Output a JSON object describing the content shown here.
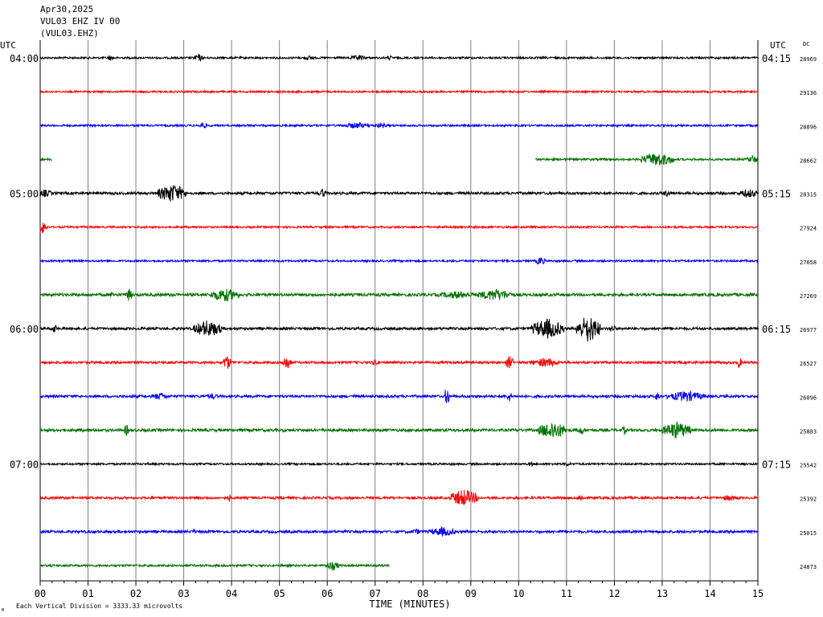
{
  "header": {
    "date": "Apr30,2025",
    "station_line": "VUL03 EHZ IV 00",
    "station_code": "(VUL03.EHZ)"
  },
  "chart_data": {
    "type": "line",
    "left_axis_title": "UTC",
    "right_axis_title": "UTC",
    "dc_title": "DC",
    "xlabel": "TIME (MINUTES)",
    "xlim": [
      0,
      15
    ],
    "x_ticks": [
      "00",
      "01",
      "02",
      "03",
      "04",
      "05",
      "06",
      "07",
      "08",
      "09",
      "10",
      "11",
      "12",
      "13",
      "14",
      "15"
    ],
    "footnote": "Each Vertical Division = 3333.33 microvolts",
    "corner_mark": "M",
    "left_hour_labels": [
      {
        "row": 0,
        "label": "04:00"
      },
      {
        "row": 4,
        "label": "05:00"
      },
      {
        "row": 8,
        "label": "06:00"
      },
      {
        "row": 12,
        "label": "07:00"
      }
    ],
    "right_hour_labels": [
      {
        "row": 0,
        "label": "04:15"
      },
      {
        "row": 4,
        "label": "05:15"
      },
      {
        "row": 8,
        "label": "06:15"
      },
      {
        "row": 12,
        "label": "07:15"
      }
    ],
    "trace_colors": [
      "#000000",
      "#ff0000",
      "#0000ff",
      "#007000"
    ],
    "traces": [
      {
        "row": 0,
        "dc": "28969",
        "segments": [
          [
            0,
            15
          ]
        ],
        "amp": 1.2,
        "events": [
          {
            "t": 1.45,
            "a": 4,
            "d": 0.05
          },
          {
            "t": 3.3,
            "a": 5,
            "d": 0.1
          },
          {
            "t": 5.6,
            "a": 3,
            "d": 0.15
          },
          {
            "t": 6.65,
            "a": 3.5,
            "d": 0.2
          },
          {
            "t": 7.3,
            "a": 4,
            "d": 0.05
          }
        ]
      },
      {
        "row": 1,
        "dc": "29136",
        "segments": [
          [
            0,
            15
          ]
        ],
        "amp": 1.2,
        "events": []
      },
      {
        "row": 2,
        "dc": "28896",
        "segments": [
          [
            0,
            15
          ]
        ],
        "amp": 1.2,
        "events": [
          {
            "t": 3.4,
            "a": 5,
            "d": 0.08
          },
          {
            "t": 6.6,
            "a": 4,
            "d": 0.3
          },
          {
            "t": 7.1,
            "a": 3,
            "d": 0.2
          },
          {
            "t": 12.05,
            "a": 3,
            "d": 0.05
          }
        ]
      },
      {
        "row": 3,
        "dc": "28662",
        "segments": [
          [
            0,
            0.25
          ],
          [
            10.35,
            15
          ]
        ],
        "amp": 1.3,
        "events": [
          {
            "t": 12.9,
            "a": 9,
            "d": 0.35
          },
          {
            "t": 14.9,
            "a": 5,
            "d": 0.15
          }
        ]
      },
      {
        "row": 4,
        "dc": "28315",
        "segments": [
          [
            0,
            15
          ]
        ],
        "amp": 1.6,
        "events": [
          {
            "t": 0.1,
            "a": 5,
            "d": 0.15
          },
          {
            "t": 2.75,
            "a": 12,
            "d": 0.3
          },
          {
            "t": 5.9,
            "a": 6,
            "d": 0.08
          },
          {
            "t": 13.1,
            "a": 5,
            "d": 0.08
          },
          {
            "t": 14.8,
            "a": 6,
            "d": 0.2
          }
        ]
      },
      {
        "row": 5,
        "dc": "27924",
        "segments": [
          [
            0,
            15
          ]
        ],
        "amp": 1.2,
        "events": [
          {
            "t": 0.05,
            "a": 9,
            "d": 0.08
          },
          {
            "t": 9.1,
            "a": 3,
            "d": 0.05
          }
        ]
      },
      {
        "row": 6,
        "dc": "27658",
        "segments": [
          [
            0,
            15
          ]
        ],
        "amp": 1.2,
        "events": [
          {
            "t": 10.45,
            "a": 6,
            "d": 0.1
          }
        ]
      },
      {
        "row": 7,
        "dc": "27269",
        "segments": [
          [
            0,
            15
          ]
        ],
        "amp": 1.8,
        "events": [
          {
            "t": 1.5,
            "a": 5,
            "d": 0.05
          },
          {
            "t": 1.85,
            "a": 8,
            "d": 0.08
          },
          {
            "t": 3.85,
            "a": 9,
            "d": 0.3
          },
          {
            "t": 8.7,
            "a": 5,
            "d": 0.4
          },
          {
            "t": 9.5,
            "a": 8,
            "d": 0.35
          }
        ]
      },
      {
        "row": 8,
        "dc": "26977",
        "segments": [
          [
            0,
            15
          ]
        ],
        "amp": 1.6,
        "events": [
          {
            "t": 0.3,
            "a": 6,
            "d": 0.05
          },
          {
            "t": 3.5,
            "a": 11,
            "d": 0.3
          },
          {
            "t": 10.6,
            "a": 13,
            "d": 0.35
          },
          {
            "t": 11.45,
            "a": 18,
            "d": 0.25
          },
          {
            "t": 11.95,
            "a": 5,
            "d": 0.08
          }
        ]
      },
      {
        "row": 9,
        "dc": "26527",
        "segments": [
          [
            0,
            15
          ]
        ],
        "amp": 1.5,
        "events": [
          {
            "t": 3.9,
            "a": 10,
            "d": 0.08
          },
          {
            "t": 5.15,
            "a": 10,
            "d": 0.1
          },
          {
            "t": 7.0,
            "a": 4,
            "d": 0.1
          },
          {
            "t": 9.8,
            "a": 9,
            "d": 0.08
          },
          {
            "t": 10.55,
            "a": 6,
            "d": 0.3
          },
          {
            "t": 14.6,
            "a": 8,
            "d": 0.05
          }
        ]
      },
      {
        "row": 10,
        "dc": "26096",
        "segments": [
          [
            0,
            15
          ]
        ],
        "amp": 1.6,
        "events": [
          {
            "t": 2.5,
            "a": 5,
            "d": 0.15
          },
          {
            "t": 3.6,
            "a": 4,
            "d": 0.12
          },
          {
            "t": 8.5,
            "a": 14,
            "d": 0.05
          },
          {
            "t": 9.8,
            "a": 8,
            "d": 0.05
          },
          {
            "t": 12.9,
            "a": 7,
            "d": 0.05
          },
          {
            "t": 13.5,
            "a": 7,
            "d": 0.4
          }
        ]
      },
      {
        "row": 11,
        "dc": "25883",
        "segments": [
          [
            0,
            15
          ]
        ],
        "amp": 1.7,
        "events": [
          {
            "t": 1.8,
            "a": 8,
            "d": 0.05
          },
          {
            "t": 10.7,
            "a": 12,
            "d": 0.3
          },
          {
            "t": 11.3,
            "a": 6,
            "d": 0.08
          },
          {
            "t": 12.2,
            "a": 6,
            "d": 0.05
          },
          {
            "t": 13.3,
            "a": 11,
            "d": 0.3
          }
        ]
      },
      {
        "row": 12,
        "dc": "25542",
        "segments": [
          [
            0,
            15
          ]
        ],
        "amp": 1.2,
        "events": [
          {
            "t": 10.25,
            "a": 4,
            "d": 0.05
          },
          {
            "t": 11.0,
            "a": 3,
            "d": 0.1
          }
        ]
      },
      {
        "row": 13,
        "dc": "25392",
        "segments": [
          [
            0,
            15
          ]
        ],
        "amp": 1.5,
        "events": [
          {
            "t": 3.95,
            "a": 5,
            "d": 0.05
          },
          {
            "t": 8.85,
            "a": 11,
            "d": 0.3
          },
          {
            "t": 11.3,
            "a": 5,
            "d": 0.08
          },
          {
            "t": 14.4,
            "a": 4,
            "d": 0.2
          }
        ]
      },
      {
        "row": 14,
        "dc": "25015",
        "segments": [
          [
            0,
            15
          ]
        ],
        "amp": 1.6,
        "events": [
          {
            "t": 3.2,
            "a": 4,
            "d": 0.05
          },
          {
            "t": 7.85,
            "a": 4,
            "d": 0.1
          },
          {
            "t": 8.4,
            "a": 6,
            "d": 0.3
          }
        ]
      },
      {
        "row": 15,
        "dc": "24873",
        "segments": [
          [
            0,
            7.3
          ]
        ],
        "amp": 1.3,
        "events": [
          {
            "t": 6.1,
            "a": 6,
            "d": 0.15
          }
        ]
      }
    ]
  }
}
